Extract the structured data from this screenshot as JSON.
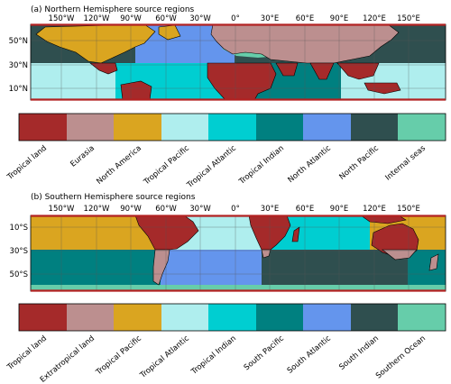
{
  "panels": [
    {
      "title": "(a) Northern Hemisphere source regions",
      "lon_ticks": [
        "150°W",
        "120°W",
        "90°W",
        "60°W",
        "30°W",
        "0°",
        "30°E",
        "60°E",
        "90°E",
        "120°E",
        "150°E"
      ],
      "lat_ticks": [
        "50°N",
        "30°N",
        "10°N"
      ],
      "legend": [
        {
          "label": "Tropical land",
          "color": "#a52a2a"
        },
        {
          "label": "Eurasia",
          "color": "#bc8f8f"
        },
        {
          "label": "North America",
          "color": "#daa520"
        },
        {
          "label": "Tropical Pacific",
          "color": "#afeeee"
        },
        {
          "label": "Tropical Atlantic",
          "color": "#00ced1"
        },
        {
          "label": "Tropical Indian",
          "color": "#008080"
        },
        {
          "label": "North Atlantic",
          "color": "#6495ed"
        },
        {
          "label": "North Pacific",
          "color": "#2f4f4f"
        },
        {
          "label": "Internal seas",
          "color": "#66cdaa"
        }
      ]
    },
    {
      "title": "(b) Southern Hemisphere source regions",
      "lon_ticks": [
        "150°W",
        "120°W",
        "90°W",
        "60°W",
        "30°W",
        "0°",
        "30°E",
        "60°E",
        "90°E",
        "120°E",
        "150°E"
      ],
      "lat_ticks": [
        "10°S",
        "30°S",
        "50°S"
      ],
      "legend": [
        {
          "label": "Tropical land",
          "color": "#a52a2a"
        },
        {
          "label": "Extratropical land",
          "color": "#bc8f8f"
        },
        {
          "label": "Tropical Pacific",
          "color": "#daa520"
        },
        {
          "label": "Tropical Atlantic",
          "color": "#afeeee"
        },
        {
          "label": "Tropical Indian",
          "color": "#00ced1"
        },
        {
          "label": "South Pacific",
          "color": "#008080"
        },
        {
          "label": "South Atlantic",
          "color": "#6495ed"
        },
        {
          "label": "South Indian",
          "color": "#2f4f4f"
        },
        {
          "label": "Southern Ocean",
          "color": "#66cdaa"
        }
      ]
    }
  ]
}
